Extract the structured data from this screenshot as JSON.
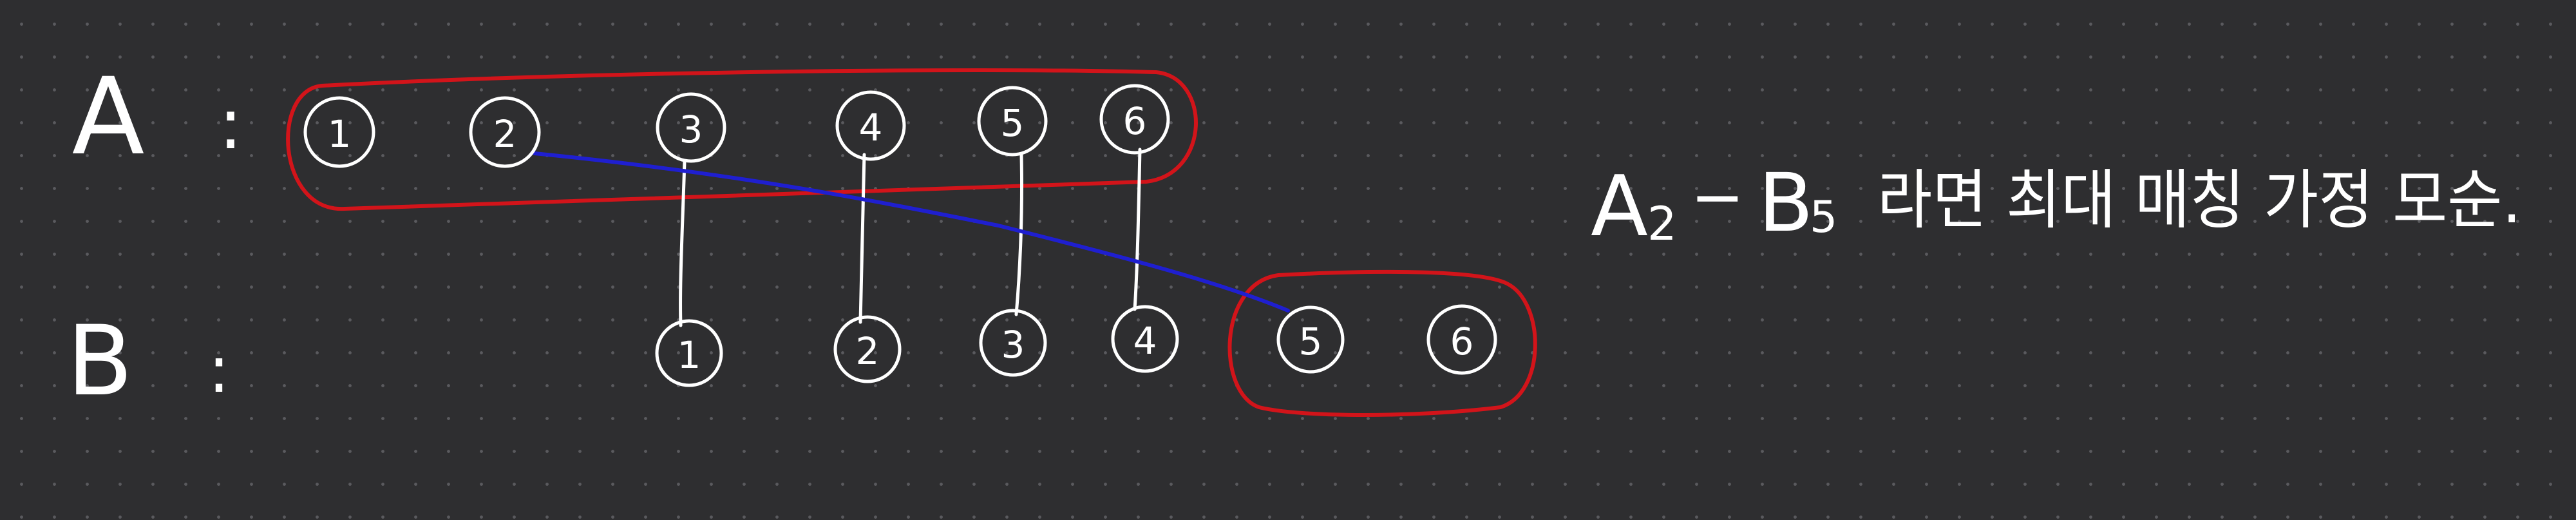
{
  "row_a": {
    "label": "A",
    "separator": ":",
    "nodes": [
      "1",
      "2",
      "3",
      "4",
      "5",
      "6"
    ]
  },
  "row_b": {
    "label": "B",
    "separator": ":",
    "nodes": [
      "1",
      "2",
      "3",
      "4",
      "5",
      "6"
    ]
  },
  "matching_edges": [
    {
      "from": "A3",
      "to": "B1"
    },
    {
      "from": "A4",
      "to": "B2"
    },
    {
      "from": "A5",
      "to": "B3"
    },
    {
      "from": "A6",
      "to": "B4"
    }
  ],
  "assumed_edge": {
    "from": "A2",
    "to": "B5"
  },
  "groups": [
    {
      "name": "A1-A6",
      "members": [
        "A1",
        "A2",
        "A3",
        "A4",
        "A5",
        "A6"
      ]
    },
    {
      "name": "B5-B6",
      "members": [
        "B5",
        "B6"
      ]
    }
  ],
  "note": {
    "a_letter": "A",
    "a_sub": "2",
    "dash": "−",
    "b_letter": "B",
    "b_sub": "5",
    "text": "라면 최대 매칭 가정 모순."
  },
  "colors": {
    "background": "#2e2e30",
    "ink": "#ffffff",
    "group_outline": "#d2141a",
    "assumed_edge": "#1f1fd0"
  }
}
